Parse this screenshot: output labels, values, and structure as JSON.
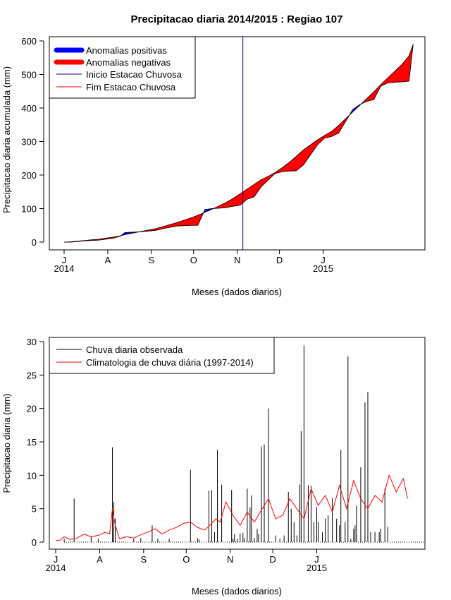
{
  "chart_data": [
    {
      "type": "area",
      "title": "Precipitacao diaria 2014/2015 : Regiao 107",
      "xlabel": "Meses (dados diarios)",
      "ylabel": "Precipitacao diaria acumulada (mm)",
      "ylim": [
        0,
        600
      ],
      "yticks": [
        "0",
        "100",
        "200",
        "300",
        "400",
        "500",
        "600"
      ],
      "month_labels": [
        "J",
        "A",
        "S",
        "O",
        "N",
        "D",
        "J"
      ],
      "year_labels": [
        "2014",
        "2015"
      ],
      "legend": {
        "position": "top-left",
        "items": [
          {
            "label": "Anomalias positivas",
            "color": "#0000ff",
            "style": "thick"
          },
          {
            "label": "Anomalias negativas",
            "color": "#ff0000",
            "style": "thick"
          },
          {
            "label": "Inicio Estacao Chuvosa",
            "color": "#00008b",
            "style": "line"
          },
          {
            "label": "Fim Estacao Chuvosa",
            "color": "#ff0000",
            "style": "line"
          }
        ]
      },
      "rainy_season_start_day": 127,
      "observed_cumulative": {
        "days": [
          0,
          5,
          10,
          15,
          20,
          25,
          30,
          35,
          40,
          43,
          46,
          50,
          55,
          60,
          65,
          70,
          75,
          80,
          85,
          90,
          95,
          100,
          105,
          110,
          115,
          120,
          125,
          130,
          135,
          140,
          145,
          150,
          155,
          160,
          165,
          170,
          175,
          180,
          185,
          190,
          195,
          200,
          205,
          210,
          215,
          220,
          225,
          230,
          235,
          240,
          245,
          248
        ],
        "values": [
          0,
          0,
          2,
          4,
          5,
          6,
          9,
          12,
          18,
          28,
          29,
          30,
          31,
          33,
          35,
          40,
          44,
          48,
          49,
          50,
          50,
          97,
          100,
          101,
          103,
          107,
          110,
          128,
          135,
          165,
          185,
          205,
          210,
          212,
          213,
          230,
          260,
          290,
          310,
          315,
          325,
          360,
          395,
          410,
          420,
          425,
          465,
          475,
          477,
          478,
          480,
          590
        ]
      },
      "climatology_cumulative": {
        "days": [
          0,
          5,
          10,
          15,
          20,
          25,
          30,
          35,
          40,
          45,
          50,
          55,
          60,
          65,
          70,
          75,
          80,
          85,
          90,
          95,
          100,
          105,
          110,
          115,
          120,
          125,
          130,
          135,
          140,
          145,
          150,
          155,
          160,
          165,
          170,
          175,
          180,
          185,
          190,
          195,
          200,
          205,
          210,
          215,
          220,
          225,
          230,
          235,
          240,
          245,
          248
        ],
        "values": [
          0,
          1,
          3,
          5,
          7,
          9,
          12,
          15,
          19,
          24,
          28,
          32,
          36,
          40,
          46,
          52,
          58,
          65,
          72,
          80,
          89,
          98,
          108,
          118,
          130,
          144,
          158,
          172,
          186,
          196,
          208,
          222,
          238,
          256,
          275,
          290,
          305,
          318,
          330,
          348,
          368,
          388,
          408,
          428,
          448,
          470,
          490,
          510,
          530,
          555,
          590
        ]
      }
    },
    {
      "type": "bar",
      "title": "",
      "xlabel": "Meses (dados diarios)",
      "ylabel": "Precipitacao diaria (mm)",
      "ylim": [
        0,
        30
      ],
      "yticks": [
        "0",
        "5",
        "10",
        "15",
        "20",
        "25",
        "30"
      ],
      "month_labels": [
        "J",
        "A",
        "S",
        "O",
        "N",
        "D",
        "J"
      ],
      "year_labels": [
        "2014",
        "2015"
      ],
      "legend": {
        "position": "top-left",
        "items": [
          {
            "label": "Chuva diaria observada",
            "color": "#000000",
            "style": "line"
          },
          {
            "label": "Climatologia de chuva diária (1997-2014)",
            "color": "#ff0000",
            "style": "line"
          }
        ]
      },
      "observed_daily": {
        "days": [
          6,
          13,
          25,
          30,
          40,
          41,
          42,
          55,
          60,
          68,
          72,
          80,
          95,
          100,
          101,
          108,
          110,
          112,
          114,
          117,
          124,
          125,
          126,
          128,
          130,
          132,
          133,
          135,
          137,
          138,
          140,
          142,
          143,
          145,
          147,
          150,
          155,
          158,
          161,
          164,
          166,
          168,
          170,
          172,
          173,
          175,
          178,
          180,
          182,
          184,
          185,
          188,
          190,
          192,
          195,
          198,
          200,
          201,
          204,
          206,
          208,
          210,
          211,
          212,
          215,
          218,
          220,
          222,
          225,
          228,
          229,
          232,
          234
        ],
        "values": [
          0.5,
          6.5,
          0.8,
          0.5,
          14.2,
          6,
          3.5,
          0.5,
          0.6,
          2.5,
          0.5,
          0.5,
          10.8,
          0.6,
          0.4,
          7.7,
          7.8,
          1.5,
          13.8,
          8.6,
          7.8,
          0.5,
          1.2,
          0.5,
          1.3,
          1.4,
          0.6,
          8.0,
          5.2,
          7.0,
          0.6,
          2.0,
          1.2,
          14.3,
          14.6,
          20.0,
          1.0,
          0.5,
          1.0,
          7.5,
          5.0,
          3.0,
          1.0,
          8.6,
          16.6,
          29.4,
          8.5,
          8.4,
          3.0,
          5.3,
          3.0,
          1.5,
          3.5,
          4.0,
          6.6,
          3.5,
          2.5,
          13.8,
          3.0,
          27.8,
          0.5,
          2.0,
          2.5,
          5.5,
          11.2,
          20.9,
          22.5,
          1.5,
          1.5,
          1.5,
          2.0,
          8.0,
          2.3
        ]
      },
      "climatology_daily": {
        "days": [
          0,
          3,
          6,
          10,
          15,
          20,
          25,
          30,
          35,
          38,
          40,
          42,
          45,
          50,
          55,
          60,
          65,
          70,
          75,
          80,
          85,
          90,
          95,
          100,
          105,
          110,
          113,
          116,
          120,
          125,
          130,
          135,
          140,
          145,
          150,
          155,
          160,
          165,
          170,
          175,
          180,
          185,
          190,
          195,
          200,
          205,
          210,
          215,
          220,
          225,
          230,
          235,
          240,
          245,
          248
        ],
        "values": [
          0.2,
          0.3,
          0.8,
          0.4,
          0.6,
          1.2,
          0.8,
          1.0,
          1.5,
          1.2,
          5.0,
          2.5,
          0.5,
          0.8,
          0.6,
          1.1,
          1.5,
          2.0,
          1.2,
          1.8,
          2.2,
          2.8,
          3.0,
          2.2,
          1.8,
          2.8,
          3.5,
          3.0,
          6.0,
          4.0,
          2.5,
          4.5,
          3.0,
          4.8,
          6.5,
          3.5,
          4.0,
          6.5,
          5.0,
          3.5,
          8.0,
          5.5,
          7.0,
          4.5,
          8.5,
          5.0,
          9.2,
          6.5,
          5.0,
          7.0,
          6.0,
          10.0,
          7.5,
          9.5,
          6.5
        ]
      }
    }
  ]
}
